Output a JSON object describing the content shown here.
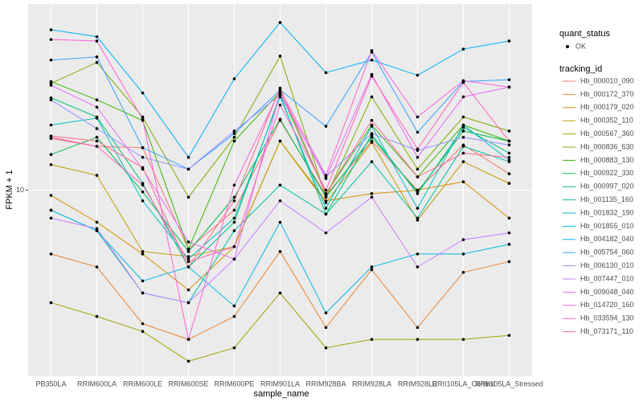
{
  "chart_data": {
    "type": "line",
    "x_label": "sample_name",
    "y_label": "FPKM + 1",
    "categories": [
      "PB350LA",
      "RRIM600LA",
      "RRIM600LE",
      "RRIM600SE",
      "RRIM600PE",
      "RRIM901LA",
      "RRIM928BA",
      "RRIM928LA",
      "RRIM928LE",
      "RRII105LA_Control",
      "RRII105LA_Stressed"
    ],
    "ylim": [
      3.39,
      29.5
    ],
    "yticks": [
      10
    ],
    "log_y": true,
    "grid": true,
    "shape_legend": {
      "title": "quant_status",
      "labels": [
        "OK"
      ]
    },
    "color_legend_title": "tracking_id",
    "legend_position": "right",
    "series": [
      {
        "name": "Hb_000010_090",
        "color": "#F8766D",
        "values": [
          13.5,
          12.9,
          12.8,
          7.1,
          8.9,
          15.0,
          9.7,
          13.3,
          10.0,
          13.0,
          11.0
        ]
      },
      {
        "name": "Hb_000172_370",
        "color": "#EA8331",
        "values": [
          6.9,
          6.4,
          4.6,
          4.2,
          4.8,
          7.0,
          4.5,
          6.3,
          4.5,
          6.2,
          6.6
        ]
      },
      {
        "name": "Hb_000179_020",
        "color": "#D89000",
        "values": [
          9.7,
          8.3,
          6.9,
          5.6,
          7.2,
          13.3,
          9.4,
          9.8,
          10.0,
          10.5,
          8.5
        ]
      },
      {
        "name": "Hb_000352_110",
        "color": "#C09B00",
        "values": [
          11.6,
          10.9,
          7.0,
          6.8,
          7.2,
          13.3,
          9.3,
          13.2,
          8.4,
          11.8,
          10.4
        ]
      },
      {
        "name": "Hb_000567_360",
        "color": "#A3A500",
        "values": [
          5.2,
          4.8,
          4.4,
          3.7,
          4.0,
          5.5,
          4.0,
          4.2,
          4.2,
          4.2,
          4.3
        ]
      },
      {
        "name": "Hb_000836_630",
        "color": "#7CAE00",
        "values": [
          18.6,
          21.0,
          15.3,
          9.6,
          13.6,
          21.8,
          9.6,
          17.2,
          11.3,
          15.3,
          14.1
        ]
      },
      {
        "name": "Hb_000883_130",
        "color": "#39B600",
        "values": [
          18.8,
          16.9,
          15.0,
          7.1,
          13.3,
          17.7,
          9.8,
          14.6,
          10.8,
          14.6,
          13.3
        ]
      },
      {
        "name": "Hb_000922_330",
        "color": "#00BB4E",
        "values": [
          12.3,
          13.6,
          9.9,
          7.0,
          9.6,
          15.1,
          9.6,
          13.6,
          9.9,
          14.1,
          13.3
        ]
      },
      {
        "name": "Hb_000997_020",
        "color": "#00BF7D",
        "values": [
          17.1,
          15.3,
          10.4,
          6.4,
          8.3,
          17.4,
          8.7,
          13.8,
          9.8,
          14.4,
          12.4
        ]
      },
      {
        "name": "Hb_001135_160",
        "color": "#00C1A3",
        "values": [
          8.9,
          7.9,
          5.5,
          5.2,
          7.9,
          10.3,
          8.7,
          11.8,
          8.5,
          12.9,
          11.8
        ]
      },
      {
        "name": "Hb_001832_190",
        "color": "#00BFC4",
        "values": [
          14.6,
          15.2,
          9.4,
          6.7,
          8.5,
          17.2,
          9.0,
          14.5,
          9.0,
          14.6,
          11.9
        ]
      },
      {
        "name": "Hb_001855_010",
        "color": "#00BAE0",
        "values": [
          8.9,
          7.9,
          5.9,
          6.4,
          5.1,
          8.3,
          4.9,
          6.4,
          6.9,
          6.9,
          7.3
        ]
      },
      {
        "name": "Hb_004182_040",
        "color": "#00B0F6",
        "values": [
          25.4,
          24.4,
          17.6,
          12.1,
          19.1,
          26.5,
          19.8,
          21.3,
          19.5,
          22.7,
          23.8
        ]
      },
      {
        "name": "Hb_005754_060",
        "color": "#35A2FF",
        "values": [
          21.3,
          21.7,
          12.8,
          11.3,
          13.9,
          17.9,
          14.5,
          22.3,
          14.0,
          18.8,
          19.0
        ]
      },
      {
        "name": "Hb_006130_010",
        "color": "#9590FF",
        "values": [
          16.9,
          14.3,
          12.1,
          11.3,
          14.1,
          17.4,
          10.8,
          13.9,
          12.6,
          13.6,
          13.0
        ]
      },
      {
        "name": "Hb_007447_010",
        "color": "#C77CFF",
        "values": [
          8.5,
          8.0,
          5.5,
          5.2,
          6.7,
          9.4,
          7.8,
          9.6,
          6.4,
          7.5,
          7.8
        ]
      },
      {
        "name": "Hb_009048_040",
        "color": "#E76BF3",
        "values": [
          18.4,
          16.2,
          11.3,
          7.4,
          6.7,
          17.6,
          10.7,
          19.6,
          12.1,
          17.2,
          18.2
        ]
      },
      {
        "name": "Hb_014720_160",
        "color": "#FA62DB",
        "values": [
          24.0,
          23.8,
          15.1,
          4.2,
          10.3,
          17.9,
          10.9,
          22.5,
          15.3,
          18.9,
          18.2
        ]
      },
      {
        "name": "Hb_033594_130",
        "color": "#FF62BC",
        "values": [
          13.6,
          12.9,
          10.3,
          6.6,
          7.2,
          16.4,
          10.0,
          19.4,
          12.7,
          18.7,
          13.3
        ]
      },
      {
        "name": "Hb_073171_110",
        "color": "#FF6C90",
        "values": [
          13.7,
          13.3,
          11.4,
          6.4,
          9.4,
          18.1,
          9.8,
          15.0,
          10.8,
          12.4,
          12.1
        ]
      }
    ]
  }
}
